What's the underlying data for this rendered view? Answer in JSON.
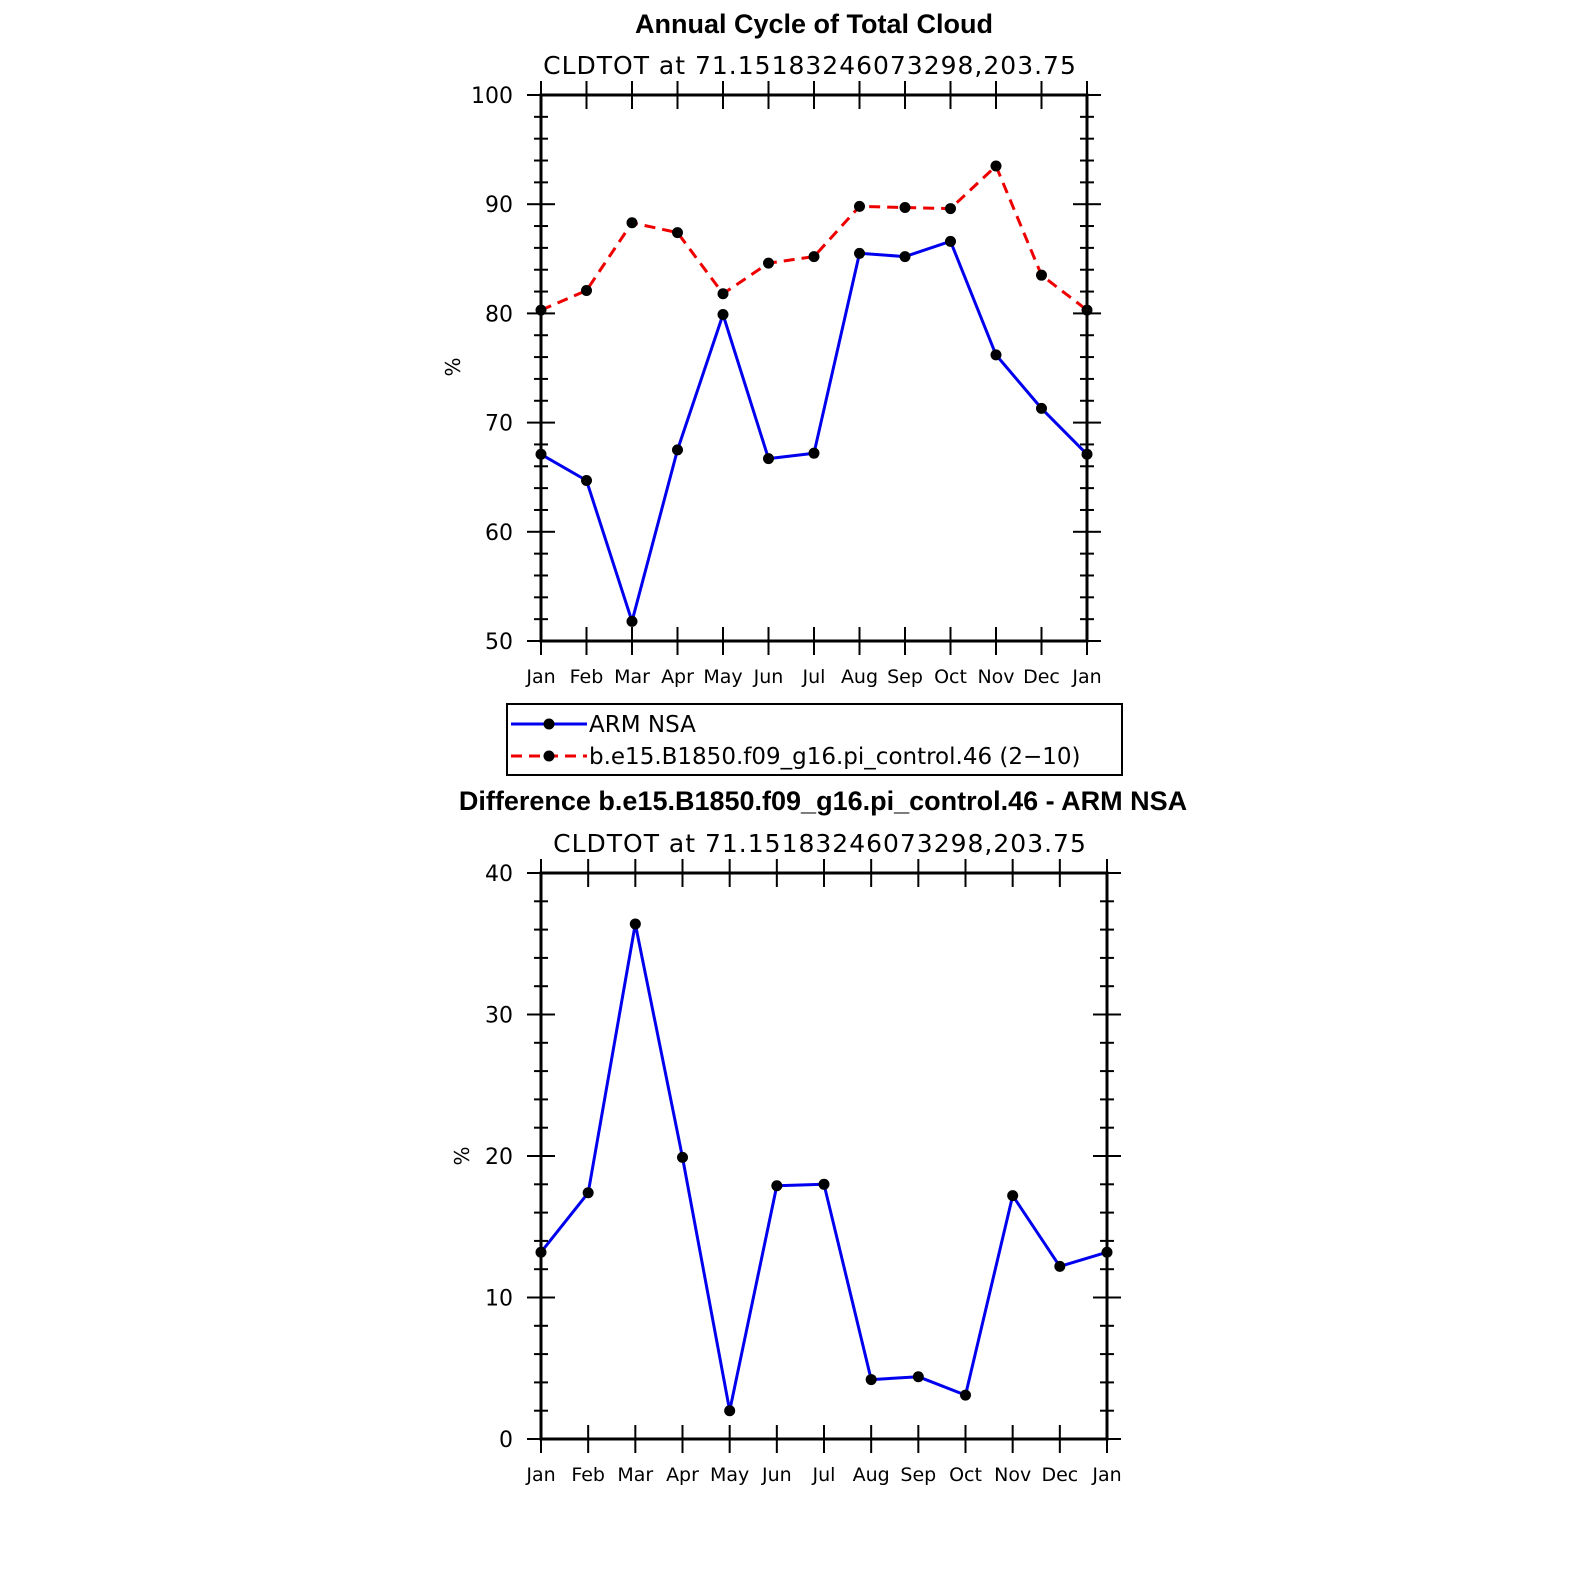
{
  "chart_data": [
    {
      "type": "line",
      "title": "Annual Cycle of Total Cloud",
      "subtitle": "CLDTOT at 71.15183246073298,203.75",
      "ylabel": "%",
      "ylim": [
        50,
        100
      ],
      "yticks": [
        50,
        60,
        70,
        80,
        90,
        100
      ],
      "categories": [
        "Jan",
        "Feb",
        "Mar",
        "Apr",
        "May",
        "Jun",
        "Jul",
        "Aug",
        "Sep",
        "Oct",
        "Nov",
        "Dec",
        "Jan"
      ],
      "series": [
        {
          "name": "ARM NSA",
          "color": "#0000ee",
          "dash": "solid",
          "values": [
            67.1,
            64.7,
            51.8,
            67.5,
            79.9,
            66.7,
            67.2,
            85.5,
            85.2,
            86.6,
            76.2,
            71.3,
            67.1
          ]
        },
        {
          "name": "b.e15.B1850.f09_g16.pi_control.46 (2−10)",
          "color": "#ee0000",
          "dash": "dashed",
          "values": [
            80.3,
            82.1,
            88.3,
            87.4,
            81.8,
            84.6,
            85.2,
            89.8,
            89.7,
            89.6,
            93.5,
            83.5,
            80.3
          ]
        }
      ],
      "legend": "below"
    },
    {
      "type": "line",
      "title": "Difference b.e15.B1850.f09_g16.pi_control.46 - ARM NSA",
      "subtitle": "CLDTOT at 71.15183246073298,203.75",
      "ylabel": "%",
      "ylim": [
        0,
        40
      ],
      "yticks": [
        0,
        10,
        20,
        30,
        40
      ],
      "categories": [
        "Jan",
        "Feb",
        "Mar",
        "Apr",
        "May",
        "Jun",
        "Jul",
        "Aug",
        "Sep",
        "Oct",
        "Nov",
        "Dec",
        "Jan"
      ],
      "series": [
        {
          "color": "#0000ee",
          "dash": "solid",
          "values": [
            13.2,
            17.4,
            36.4,
            19.9,
            2.0,
            17.9,
            18.0,
            4.2,
            4.4,
            3.1,
            17.2,
            12.2,
            13.2
          ]
        }
      ]
    }
  ]
}
